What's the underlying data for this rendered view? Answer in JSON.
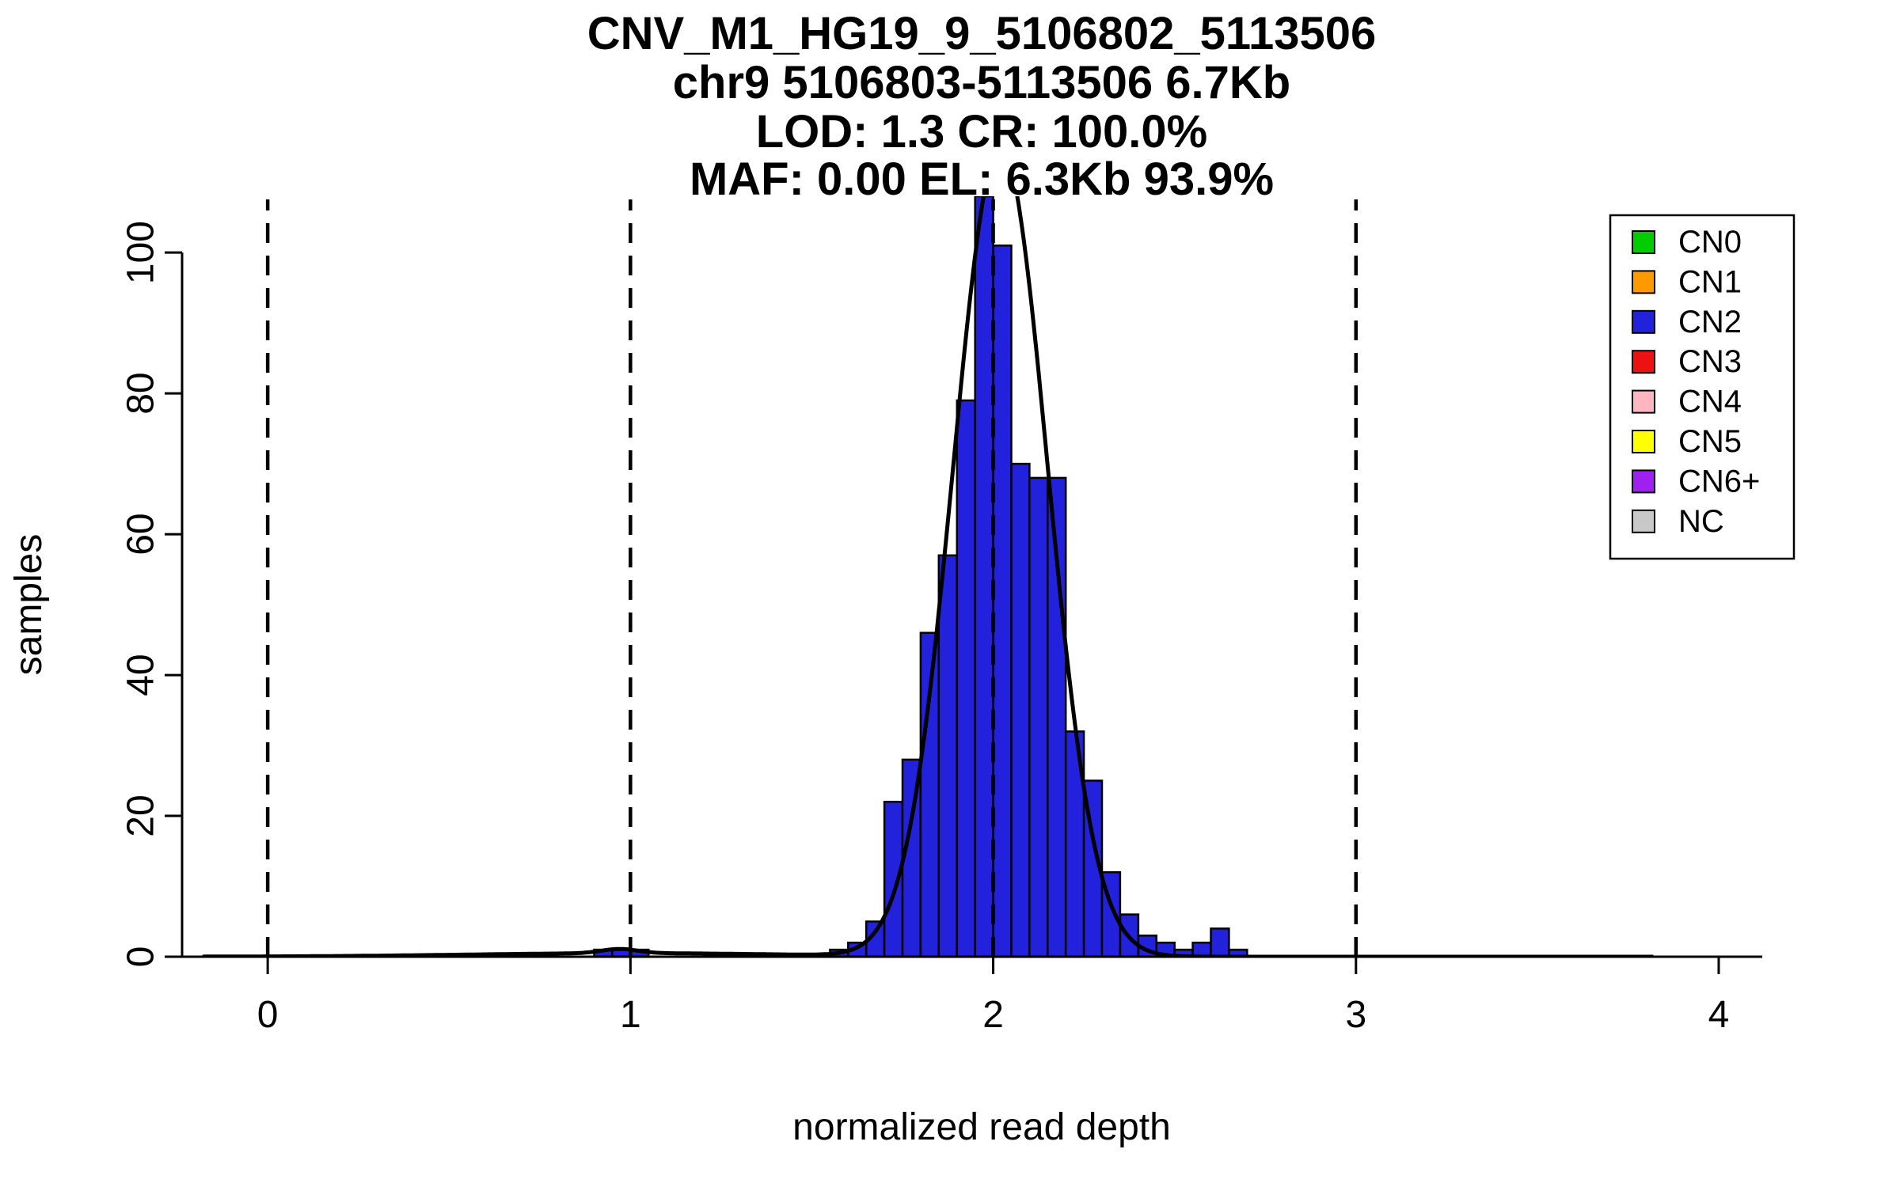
{
  "chart_data": {
    "type": "bar",
    "subtype": "histogram_with_density_curve",
    "title_lines": [
      "CNV_M1_HG19_9_5106802_5113506",
      "chr9 5106803-5113506 6.7Kb",
      "LOD: 1.3 CR: 100.0%",
      "MAF: 0.00 EL: 6.3Kb 93.9%"
    ],
    "xlabel": "normalized read depth",
    "ylabel": "samples",
    "x_ticks": [
      0,
      1,
      2,
      3,
      4
    ],
    "y_ticks": [
      0,
      20,
      40,
      60,
      80,
      100
    ],
    "x_range": [
      -0.236,
      4.12
    ],
    "y_range": [
      0,
      108
    ],
    "dashed_lines_x": [
      0,
      1,
      2,
      3
    ],
    "grid": "off",
    "bin_width": 0.05,
    "bar_color": "#2222DD",
    "bar_edge_color": "#000000",
    "curve_color": "#000000",
    "bars": [
      {
        "x": 0.9,
        "n": 1
      },
      {
        "x": 0.95,
        "n": 1
      },
      {
        "x": 1.0,
        "n": 1
      },
      {
        "x": 1.55,
        "n": 1
      },
      {
        "x": 1.6,
        "n": 2
      },
      {
        "x": 1.65,
        "n": 5
      },
      {
        "x": 1.7,
        "n": 22
      },
      {
        "x": 1.75,
        "n": 28
      },
      {
        "x": 1.8,
        "n": 46
      },
      {
        "x": 1.85,
        "n": 57
      },
      {
        "x": 1.9,
        "n": 79
      },
      {
        "x": 1.95,
        "n": 110
      },
      {
        "x": 2.0,
        "n": 101
      },
      {
        "x": 2.05,
        "n": 70
      },
      {
        "x": 2.1,
        "n": 68
      },
      {
        "x": 2.15,
        "n": 68
      },
      {
        "x": 2.2,
        "n": 32
      },
      {
        "x": 2.25,
        "n": 25
      },
      {
        "x": 2.3,
        "n": 12
      },
      {
        "x": 2.35,
        "n": 6
      },
      {
        "x": 2.4,
        "n": 3
      },
      {
        "x": 2.45,
        "n": 2
      },
      {
        "x": 2.5,
        "n": 1
      },
      {
        "x": 2.55,
        "n": 2
      },
      {
        "x": 2.6,
        "n": 4
      },
      {
        "x": 2.65,
        "n": 1
      }
    ],
    "curve": {
      "x_range": [
        -0.18,
        3.82
      ],
      "components": [
        {
          "mean": 1.0,
          "sd": 0.45,
          "peak": 0.5
        },
        {
          "mean": 0.97,
          "sd": 0.05,
          "peak": 0.6
        },
        {
          "mean": 2.02,
          "sd": 0.13,
          "peak": 115
        }
      ]
    },
    "legend": {
      "position": "top-right",
      "items": [
        {
          "label": "CN0",
          "color": "#00CC00"
        },
        {
          "label": "CN1",
          "color": "#FF9900"
        },
        {
          "label": "CN2",
          "color": "#2222DD"
        },
        {
          "label": "CN3",
          "color": "#EE1111"
        },
        {
          "label": "CN4",
          "color": "#FFB6C1"
        },
        {
          "label": "CN5",
          "color": "#FFFF00"
        },
        {
          "label": "CN6+",
          "color": "#A020F0"
        },
        {
          "label": "NC",
          "color": "#C8C8C8"
        }
      ]
    }
  }
}
